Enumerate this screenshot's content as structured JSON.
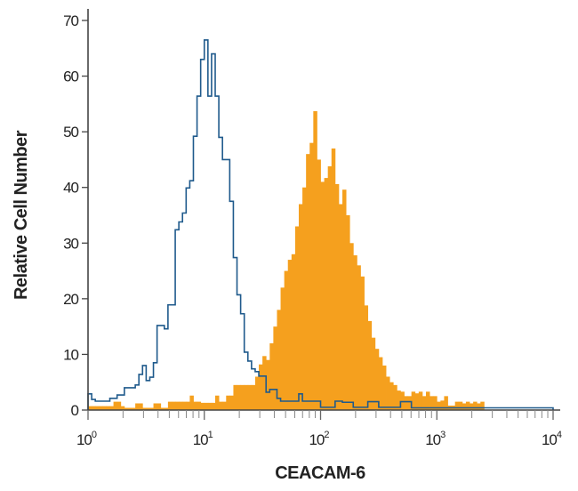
{
  "chart_data": {
    "type": "histogram",
    "title": "",
    "xlabel": "CEACAM-6",
    "ylabel": "Relative Cell Number",
    "x_scale": "log",
    "xlim": [
      1,
      10000
    ],
    "ylim": [
      0,
      70
    ],
    "x_ticks": [
      {
        "base": "10",
        "exp": "0"
      },
      {
        "base": "10",
        "exp": "1"
      },
      {
        "base": "10",
        "exp": "2"
      },
      {
        "base": "10",
        "exp": "3"
      },
      {
        "base": "10",
        "exp": "4"
      }
    ],
    "y_ticks": [
      "0",
      "10",
      "20",
      "30",
      "40",
      "50",
      "60",
      "70"
    ],
    "grid": false,
    "legend": "none",
    "channels_per_series": 128,
    "series": [
      {
        "style": "filled",
        "color": "#F5A01E",
        "counts": [
          0.7,
          0.7,
          0.7,
          0.7,
          0.7,
          0.7,
          0.7,
          1.5,
          1.5,
          0.7,
          0.4,
          0.4,
          0.4,
          1.2,
          1.2,
          0.4,
          0.4,
          0.4,
          1.2,
          1.2,
          0.4,
          0.4,
          1.5,
          1.5,
          1.5,
          1.5,
          1.5,
          1.5,
          2.6,
          1.5,
          1.5,
          1.3,
          1.3,
          1.3,
          1.3,
          2.6,
          1.5,
          1.5,
          2.6,
          2.6,
          4.5,
          4.5,
          4.5,
          4.5,
          4.5,
          4.5,
          6,
          8.2,
          9.7,
          9,
          12,
          15,
          18,
          22,
          25,
          27,
          28,
          33,
          37,
          40,
          46,
          48,
          53.7,
          45,
          41,
          41.7,
          43.8,
          47,
          40.6,
          37,
          39.6,
          35,
          30,
          27.8,
          26,
          24,
          18.8,
          16,
          13,
          11,
          9.5,
          8,
          6,
          5,
          4.5,
          3.5,
          3.3,
          2.5,
          2.5,
          3.3,
          3,
          3.3,
          2.5,
          3.3,
          2.5,
          2.5,
          1.5,
          1.7,
          2.5,
          0.8,
          0.8,
          1.5,
          1.5,
          1.2,
          1.5,
          1.2,
          1.5,
          1.2,
          1.5,
          0,
          0,
          0,
          0,
          0,
          0,
          0,
          0,
          0,
          0,
          0,
          0,
          0,
          0,
          0,
          0,
          0,
          0,
          0
        ]
      },
      {
        "style": "outline",
        "color": "#1F5A8C",
        "counts": [
          2.9,
          1.9,
          1.6,
          1.6,
          1.6,
          1.6,
          2.1,
          2.1,
          2.7,
          2.7,
          4,
          4,
          4,
          4.5,
          6.4,
          8,
          5.3,
          5.9,
          8.5,
          15.2,
          15.2,
          14.6,
          18.9,
          18.9,
          32.4,
          33.8,
          35.4,
          39.9,
          41.2,
          49.2,
          56.4,
          63,
          66.5,
          56.4,
          64,
          56.4,
          49,
          45,
          45,
          37.5,
          27.4,
          20.7,
          17.3,
          10.4,
          8.8,
          7.4,
          6.9,
          6.1,
          6.1,
          3.2,
          3.7,
          3.7,
          2.1,
          1.6,
          1.6,
          1.6,
          1.6,
          1.6,
          2.9,
          1.6,
          1.6,
          1.6,
          1.6,
          1.6,
          0.5,
          0.5,
          0.5,
          0.5,
          1.6,
          1.6,
          1.4,
          1.4,
          1.4,
          0.5,
          0.5,
          0.5,
          0.5,
          1.5,
          1.5,
          1.5,
          0.5,
          0.5,
          0.5,
          0.5,
          0.5,
          0.5,
          1.5,
          1.5,
          1.5,
          0.4,
          0.4,
          0.4,
          0.4,
          0.4,
          0.4,
          0.4,
          0.4,
          0.4,
          0.4,
          0.4,
          0.4,
          0.4,
          0.4,
          0.4,
          0.4,
          0.4,
          0.4,
          0.4,
          0.4,
          0.4,
          0.4,
          0.4,
          0.4,
          0.4,
          0.4,
          0.4,
          0.4,
          0.4,
          0.4,
          0.4,
          0.4,
          0.4,
          0.4,
          0.4,
          0.4,
          0.4,
          0.4,
          0.4
        ]
      }
    ]
  }
}
